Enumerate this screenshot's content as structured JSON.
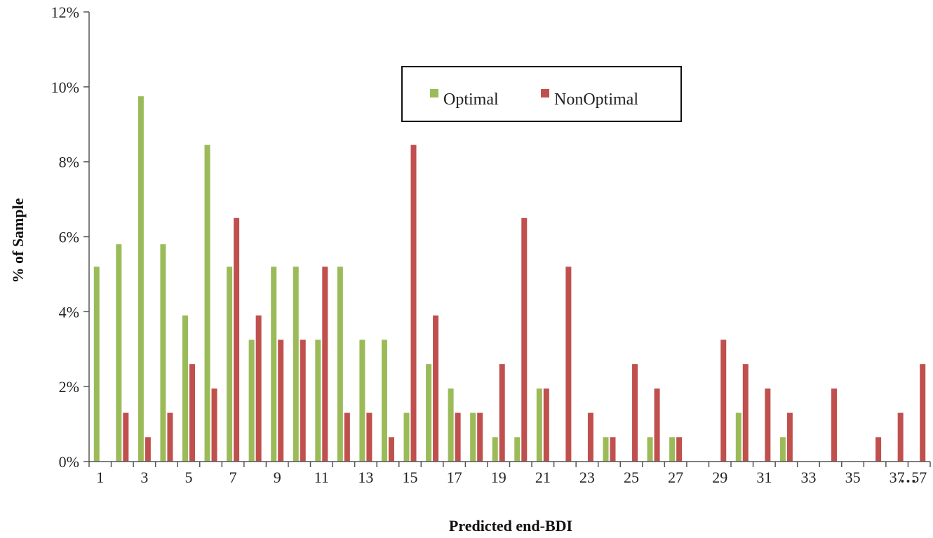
{
  "chart_data": {
    "type": "bar",
    "title": "",
    "xlabel": "Predicted end-BDI",
    "ylabel": "% of Sample",
    "ylim": [
      0,
      12
    ],
    "yticks": [
      "0%",
      "2%",
      "4%",
      "6%",
      "8%",
      "10%",
      "12%"
    ],
    "categories": [
      "1",
      "2",
      "3",
      "4",
      "5",
      "6",
      "7",
      "8",
      "9",
      "10",
      "11",
      "12",
      "13",
      "14",
      "15",
      "16",
      "17",
      "18",
      "19",
      "20",
      "21",
      "22",
      "23",
      "24",
      "25",
      "26",
      "27",
      "28",
      "29",
      "30",
      "31",
      "32",
      "33",
      "34",
      "35",
      "36",
      "37",
      "57"
    ],
    "xtick_labels": [
      "1",
      "3",
      "5",
      "7",
      "9",
      "11",
      "13",
      "15",
      "17",
      "19",
      "21",
      "23",
      "25",
      "27",
      "29",
      "31",
      "33",
      "35",
      "37",
      "57"
    ],
    "axis_break_marker": "…",
    "grid": false,
    "legend_position": "top-center",
    "series": [
      {
        "name": "Optimal",
        "color": "#9bbb59",
        "values": [
          5.2,
          5.8,
          9.75,
          5.8,
          3.9,
          8.45,
          5.2,
          3.25,
          5.2,
          5.2,
          3.25,
          5.2,
          3.25,
          3.25,
          1.3,
          2.6,
          1.95,
          1.3,
          0.65,
          0.65,
          1.95,
          0,
          0,
          0.65,
          0,
          0.65,
          0.65,
          0,
          0,
          1.3,
          0,
          0.65,
          0,
          0,
          0,
          0,
          0,
          0
        ]
      },
      {
        "name": "NonOptimal",
        "color": "#c0504d",
        "values": [
          0,
          1.3,
          0.65,
          1.3,
          2.6,
          1.95,
          6.5,
          3.9,
          3.25,
          3.25,
          5.2,
          1.3,
          1.3,
          0.65,
          8.45,
          3.9,
          1.3,
          1.3,
          2.6,
          6.5,
          1.95,
          5.2,
          1.3,
          0.65,
          2.6,
          1.95,
          0.65,
          0,
          3.25,
          2.6,
          1.95,
          1.3,
          0,
          1.95,
          0,
          0.65,
          1.3,
          2.6
        ]
      }
    ]
  }
}
